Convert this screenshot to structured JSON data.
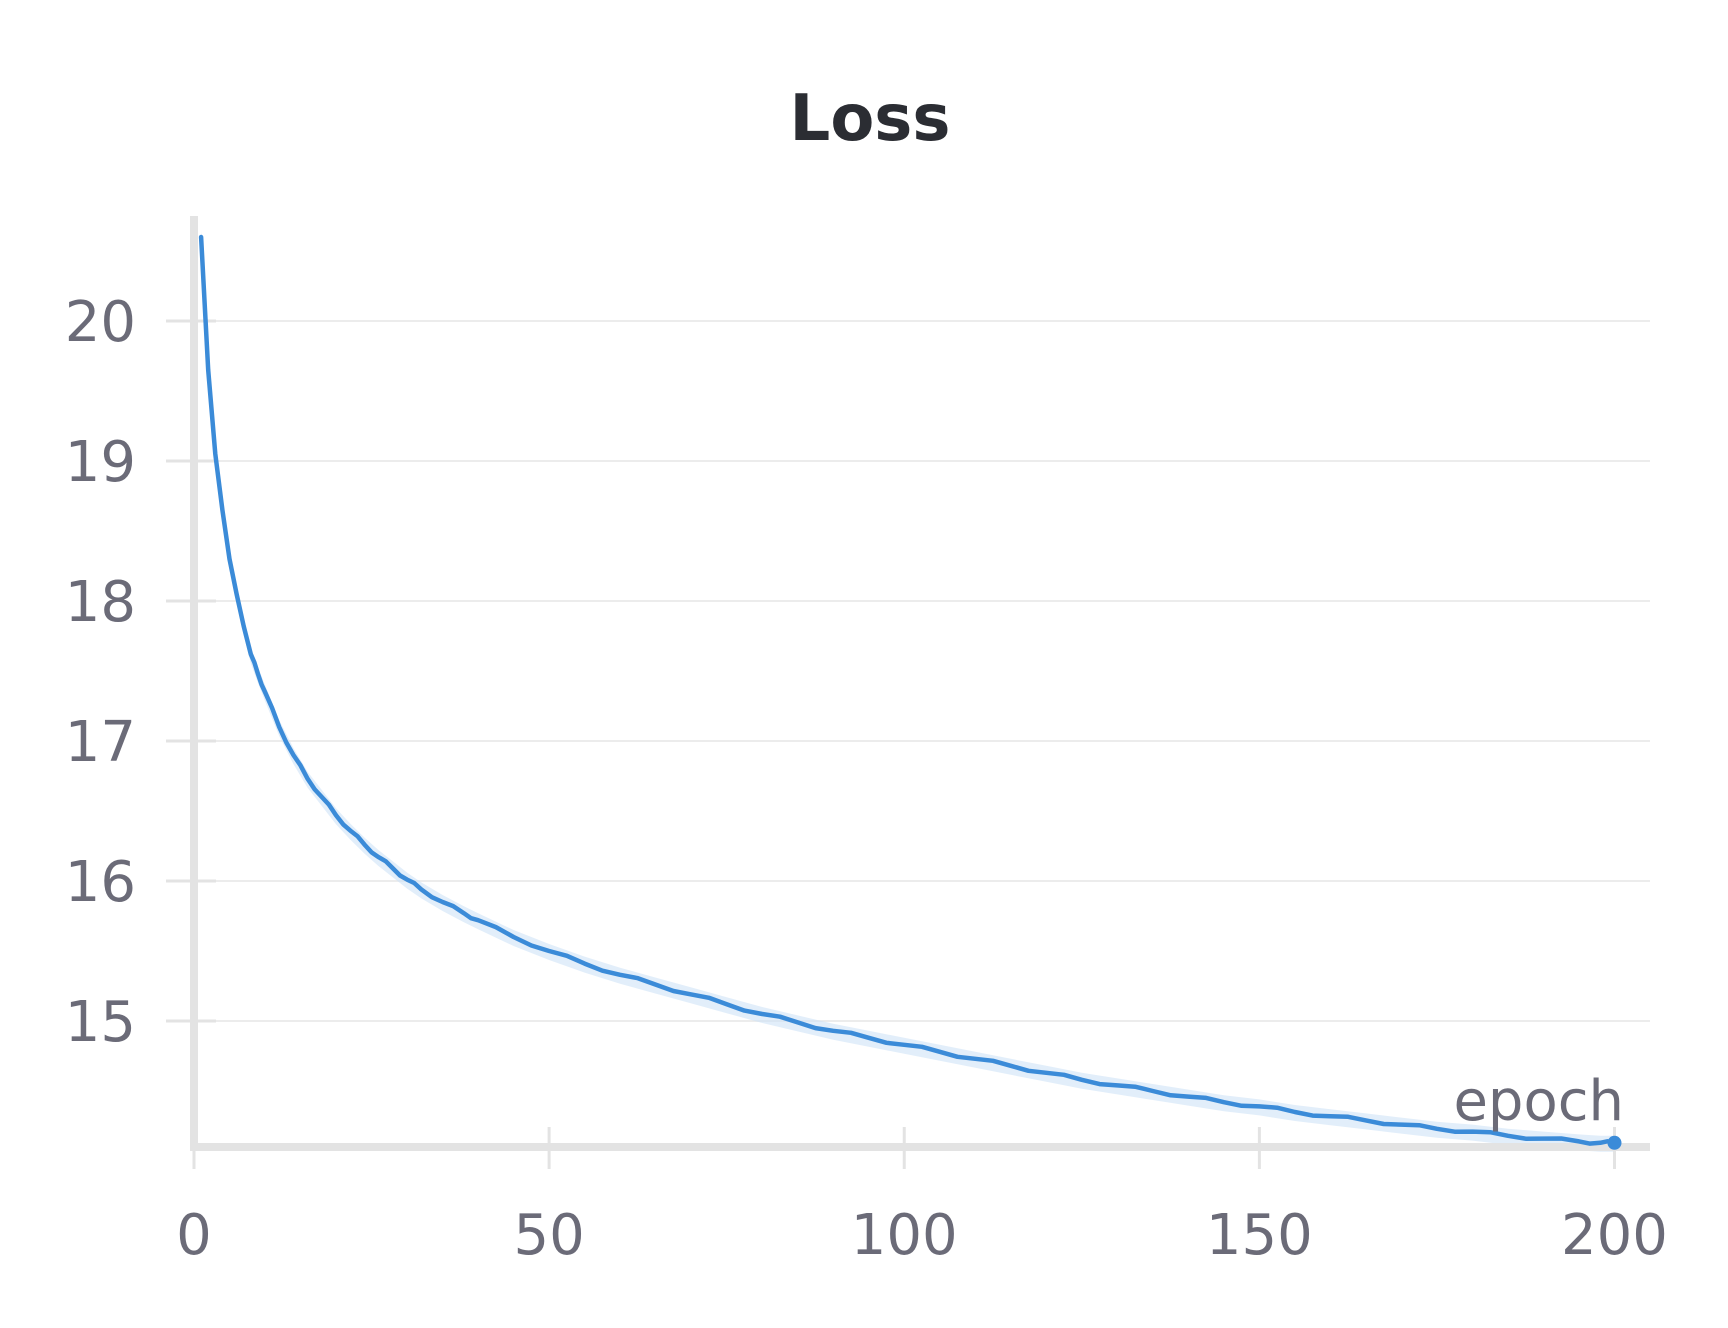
{
  "chart_data": {
    "type": "line",
    "title": "Loss",
    "xlabel": "epoch",
    "ylabel": "",
    "xlim": [
      0,
      205
    ],
    "ylim": [
      14.1,
      20.75
    ],
    "xticks": [
      0,
      50,
      100,
      150,
      200
    ],
    "yticks": [
      15,
      16,
      17,
      18,
      19,
      20
    ],
    "grid": "horizontal",
    "colors": {
      "series": "#3b8bd8",
      "band": "#cfe3f7",
      "axis": "#e3e3e3",
      "grid": "#ececec",
      "tick_text": "#6b6b78",
      "title": "#2b2d33"
    },
    "series": [
      {
        "x": [
          1,
          2,
          3,
          4,
          5,
          6,
          7,
          8,
          9,
          10,
          12,
          14,
          16,
          18,
          20,
          22,
          24,
          26,
          28,
          30,
          32,
          35,
          38,
          40,
          45,
          50,
          55,
          60,
          65,
          70,
          75,
          80,
          85,
          90,
          95,
          100,
          105,
          110,
          115,
          120,
          125,
          130,
          135,
          140,
          145,
          150,
          155,
          160,
          165,
          170,
          175,
          180,
          185,
          190,
          195,
          198,
          200
        ],
        "values": [
          20.6,
          19.65,
          19.05,
          18.65,
          18.3,
          18.05,
          17.82,
          17.62,
          17.48,
          17.35,
          17.1,
          16.9,
          16.73,
          16.6,
          16.47,
          16.36,
          16.26,
          16.17,
          16.09,
          16.01,
          15.94,
          15.85,
          15.77,
          15.72,
          15.6,
          15.5,
          15.41,
          15.33,
          15.26,
          15.19,
          15.12,
          15.05,
          14.99,
          14.93,
          14.88,
          14.83,
          14.78,
          14.73,
          14.68,
          14.63,
          14.58,
          14.54,
          14.5,
          14.46,
          14.42,
          14.39,
          14.35,
          14.32,
          14.29,
          14.26,
          14.23,
          14.21,
          14.18,
          14.16,
          14.14,
          14.13,
          14.13
        ]
      }
    ]
  }
}
